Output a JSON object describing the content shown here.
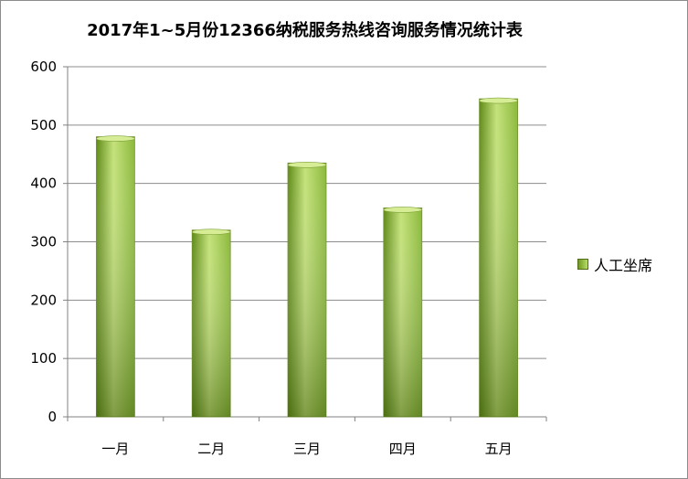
{
  "chart_data": {
    "type": "bar",
    "title": "2017年1~5月份12366纳税服务热线咨询服务情况统计表",
    "categories": [
      "一月",
      "二月",
      "三月",
      "四月",
      "五月"
    ],
    "series": [
      {
        "name": "人工坐席",
        "values": [
          480,
          320,
          435,
          358,
          545
        ]
      }
    ],
    "ylim": [
      0,
      600
    ],
    "yticks": [
      0,
      100,
      200,
      300,
      400,
      500,
      600
    ],
    "grid": true,
    "legend": "right",
    "colors": {
      "bar_dark": "#5f8a17",
      "bar_mid": "#8ab83a",
      "bar_light": "#c4e27a",
      "bar_top": "#d6ec95",
      "grid": "#8c8c8c",
      "axis": "#808080"
    }
  }
}
